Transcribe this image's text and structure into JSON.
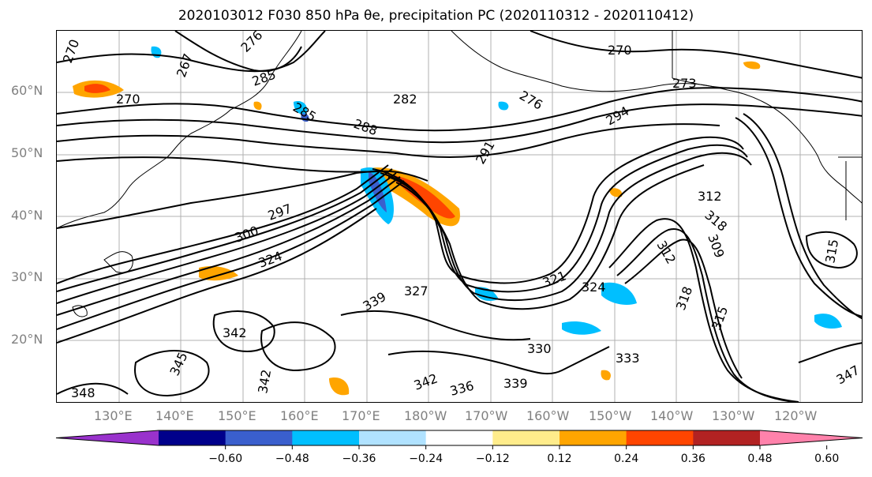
{
  "title": "2020103012 F030 850 hPa θe, precipitation PC (2020110312 - 2020110412)",
  "map": {
    "lat_labels": [
      "60°N",
      "50°N",
      "40°N",
      "30°N",
      "20°N"
    ],
    "lon_labels": [
      "130°E",
      "140°E",
      "150°E",
      "160°E",
      "170°E",
      "180°W",
      "170°W",
      "160°W",
      "150°W",
      "140°W",
      "130°W",
      "120°W"
    ],
    "contour_labels": [
      "270",
      "267",
      "276",
      "285",
      "270",
      "282",
      "270",
      "276",
      "273",
      "285",
      "288",
      "294",
      "291",
      "297",
      "300",
      "324",
      "312",
      "318",
      "312",
      "309",
      "321",
      "327",
      "324",
      "330",
      "333",
      "336",
      "339",
      "342",
      "345",
      "348",
      "342",
      "315",
      "318",
      "315",
      "339",
      "342",
      "347"
    ]
  },
  "colorbar": {
    "ticks": [
      "−0.60",
      "−0.48",
      "−0.36",
      "−0.24",
      "−0.12",
      "0.12",
      "0.24",
      "0.36",
      "0.48",
      "0.60"
    ],
    "colors": [
      "#9932CC",
      "#00008B",
      "#3A5FCD",
      "#00BFFF",
      "#B0E2FF",
      "#FFFFFF",
      "#FFEC8B",
      "#FFA500",
      "#FF4500",
      "#B22222",
      "#FF82AB"
    ]
  }
}
